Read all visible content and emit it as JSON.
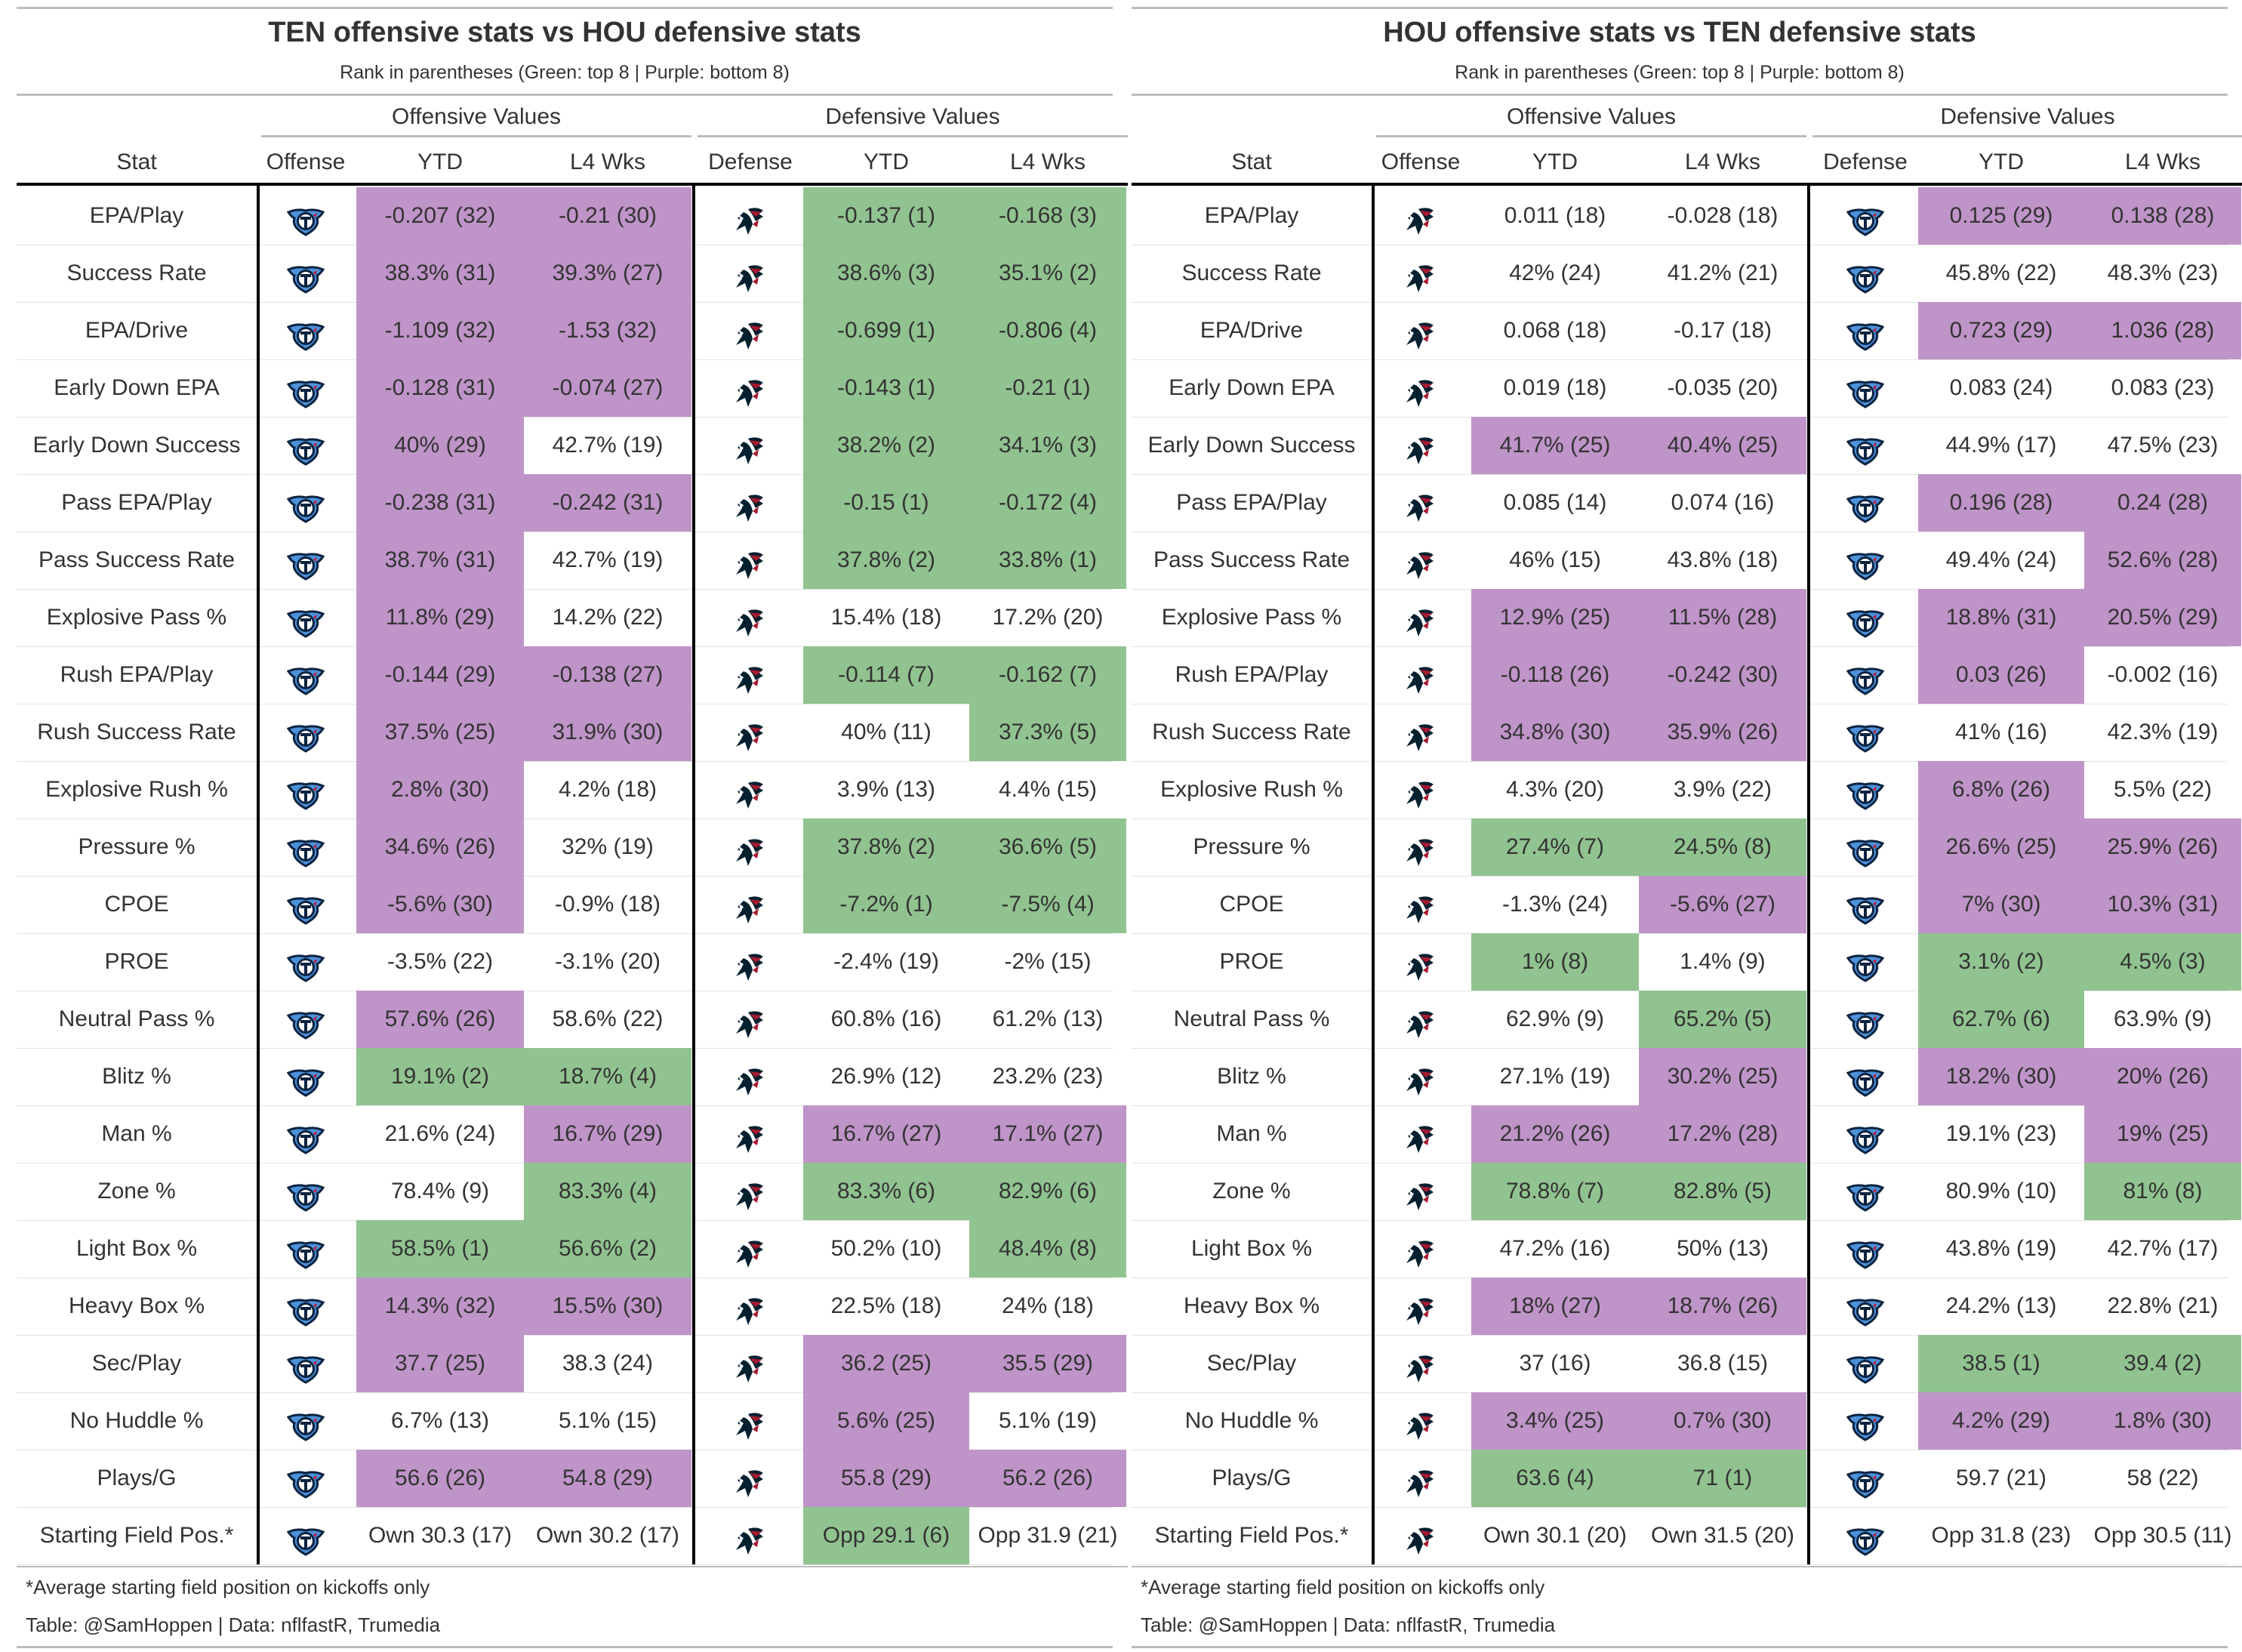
{
  "colors": {
    "green": "#91c390",
    "purple": "#bf94c8",
    "titans_navy": "#0c2340",
    "titans_blue": "#4b92db",
    "texans_red": "#a71930",
    "texans_navy": "#03202f"
  },
  "stats": [
    "EPA/Play",
    "Success Rate",
    "EPA/Drive",
    "Early Down EPA",
    "Early Down Success",
    "Pass EPA/Play",
    "Pass Success Rate",
    "Explosive Pass %",
    "Rush EPA/Play",
    "Rush Success Rate",
    "Explosive Rush %",
    "Pressure %",
    "CPOE",
    "PROE",
    "Neutral Pass %",
    "Blitz %",
    "Man %",
    "Zone %",
    "Light Box %",
    "Heavy Box %",
    "Sec/Play",
    "No Huddle %",
    "Plays/G",
    "Starting Field Pos.*"
  ],
  "tables": [
    {
      "title": "TEN offensive stats vs HOU defensive stats",
      "subtitle": "Rank in parentheses (Green: top 8 | Purple: bottom 8)",
      "spanners": {
        "offense": "Offensive Values",
        "defense": "Defensive Values"
      },
      "headers": {
        "stat": "Stat",
        "offense": "Offense",
        "off_ytd": "YTD",
        "off_l4": "L4 Wks",
        "defense": "Defense",
        "def_ytd": "YTD",
        "def_l4": "L4 Wks"
      },
      "offense_team": "TEN-logo",
      "defense_team": "HOU-logo",
      "rows": [
        {
          "off_ytd": "-0.207 (32)",
          "off_l4": "-0.21 (30)",
          "def_ytd": "-0.137 (1)",
          "def_l4": "-0.168 (3)",
          "c": [
            "p",
            "p",
            "g",
            "g"
          ]
        },
        {
          "off_ytd": "38.3% (31)",
          "off_l4": "39.3% (27)",
          "def_ytd": "38.6% (3)",
          "def_l4": "35.1% (2)",
          "c": [
            "p",
            "p",
            "g",
            "g"
          ]
        },
        {
          "off_ytd": "-1.109 (32)",
          "off_l4": "-1.53 (32)",
          "def_ytd": "-0.699 (1)",
          "def_l4": "-0.806 (4)",
          "c": [
            "p",
            "p",
            "g",
            "g"
          ]
        },
        {
          "off_ytd": "-0.128 (31)",
          "off_l4": "-0.074 (27)",
          "def_ytd": "-0.143 (1)",
          "def_l4": "-0.21 (1)",
          "c": [
            "p",
            "p",
            "g",
            "g"
          ]
        },
        {
          "off_ytd": "40% (29)",
          "off_l4": "42.7% (19)",
          "def_ytd": "38.2% (2)",
          "def_l4": "34.1% (3)",
          "c": [
            "p",
            "",
            "g",
            "g"
          ]
        },
        {
          "off_ytd": "-0.238 (31)",
          "off_l4": "-0.242 (31)",
          "def_ytd": "-0.15 (1)",
          "def_l4": "-0.172 (4)",
          "c": [
            "p",
            "p",
            "g",
            "g"
          ]
        },
        {
          "off_ytd": "38.7% (31)",
          "off_l4": "42.7% (19)",
          "def_ytd": "37.8% (2)",
          "def_l4": "33.8% (1)",
          "c": [
            "p",
            "",
            "g",
            "g"
          ]
        },
        {
          "off_ytd": "11.8% (29)",
          "off_l4": "14.2% (22)",
          "def_ytd": "15.4% (18)",
          "def_l4": "17.2% (20)",
          "c": [
            "p",
            "",
            "",
            ""
          ]
        },
        {
          "off_ytd": "-0.144 (29)",
          "off_l4": "-0.138 (27)",
          "def_ytd": "-0.114 (7)",
          "def_l4": "-0.162 (7)",
          "c": [
            "p",
            "p",
            "g",
            "g"
          ]
        },
        {
          "off_ytd": "37.5% (25)",
          "off_l4": "31.9% (30)",
          "def_ytd": "40% (11)",
          "def_l4": "37.3% (5)",
          "c": [
            "p",
            "p",
            "",
            "g"
          ]
        },
        {
          "off_ytd": "2.8% (30)",
          "off_l4": "4.2% (18)",
          "def_ytd": "3.9% (13)",
          "def_l4": "4.4% (15)",
          "c": [
            "p",
            "",
            "",
            ""
          ]
        },
        {
          "off_ytd": "34.6% (26)",
          "off_l4": "32% (19)",
          "def_ytd": "37.8% (2)",
          "def_l4": "36.6% (5)",
          "c": [
            "p",
            "",
            "g",
            "g"
          ]
        },
        {
          "off_ytd": "-5.6% (30)",
          "off_l4": "-0.9% (18)",
          "def_ytd": "-7.2% (1)",
          "def_l4": "-7.5% (4)",
          "c": [
            "p",
            "",
            "g",
            "g"
          ]
        },
        {
          "off_ytd": "-3.5% (22)",
          "off_l4": "-3.1% (20)",
          "def_ytd": "-2.4% (19)",
          "def_l4": "-2% (15)",
          "c": [
            "",
            "",
            "",
            ""
          ]
        },
        {
          "off_ytd": "57.6% (26)",
          "off_l4": "58.6% (22)",
          "def_ytd": "60.8% (16)",
          "def_l4": "61.2% (13)",
          "c": [
            "p",
            "",
            "",
            ""
          ]
        },
        {
          "off_ytd": "19.1% (2)",
          "off_l4": "18.7% (4)",
          "def_ytd": "26.9% (12)",
          "def_l4": "23.2% (23)",
          "c": [
            "g",
            "g",
            "",
            ""
          ]
        },
        {
          "off_ytd": "21.6% (24)",
          "off_l4": "16.7% (29)",
          "def_ytd": "16.7% (27)",
          "def_l4": "17.1% (27)",
          "c": [
            "",
            "p",
            "p",
            "p"
          ]
        },
        {
          "off_ytd": "78.4% (9)",
          "off_l4": "83.3% (4)",
          "def_ytd": "83.3% (6)",
          "def_l4": "82.9% (6)",
          "c": [
            "",
            "g",
            "g",
            "g"
          ]
        },
        {
          "off_ytd": "58.5% (1)",
          "off_l4": "56.6% (2)",
          "def_ytd": "50.2% (10)",
          "def_l4": "48.4% (8)",
          "c": [
            "g",
            "g",
            "",
            "g"
          ]
        },
        {
          "off_ytd": "14.3% (32)",
          "off_l4": "15.5% (30)",
          "def_ytd": "22.5% (18)",
          "def_l4": "24% (18)",
          "c": [
            "p",
            "p",
            "",
            ""
          ]
        },
        {
          "off_ytd": "37.7 (25)",
          "off_l4": "38.3 (24)",
          "def_ytd": "36.2 (25)",
          "def_l4": "35.5 (29)",
          "c": [
            "p",
            "",
            "p",
            "p"
          ]
        },
        {
          "off_ytd": "6.7% (13)",
          "off_l4": "5.1% (15)",
          "def_ytd": "5.6% (25)",
          "def_l4": "5.1% (19)",
          "c": [
            "",
            "",
            "p",
            ""
          ]
        },
        {
          "off_ytd": "56.6 (26)",
          "off_l4": "54.8 (29)",
          "def_ytd": "55.8 (29)",
          "def_l4": "56.2 (26)",
          "c": [
            "p",
            "p",
            "p",
            "p"
          ]
        },
        {
          "off_ytd": "Own 30.3 (17)",
          "off_l4": "Own 30.2 (17)",
          "def_ytd": "Opp 29.1 (6)",
          "def_l4": "Opp 31.9 (21)",
          "c": [
            "",
            "",
            "g",
            ""
          ]
        }
      ],
      "footnote": "*Average starting field position on kickoffs only",
      "source": "Table: @SamHoppen | Data: nflfastR, Trumedia"
    },
    {
      "title": "HOU offensive stats vs TEN defensive stats",
      "subtitle": "Rank in parentheses (Green: top 8 | Purple: bottom 8)",
      "spanners": {
        "offense": "Offensive Values",
        "defense": "Defensive Values"
      },
      "headers": {
        "stat": "Stat",
        "offense": "Offense",
        "off_ytd": "YTD",
        "off_l4": "L4 Wks",
        "defense": "Defense",
        "def_ytd": "YTD",
        "def_l4": "L4 Wks"
      },
      "offense_team": "HOU-logo",
      "defense_team": "TEN-logo",
      "rows": [
        {
          "off_ytd": "0.011 (18)",
          "off_l4": "-0.028 (18)",
          "def_ytd": "0.125 (29)",
          "def_l4": "0.138 (28)",
          "c": [
            "",
            "",
            "p",
            "p"
          ]
        },
        {
          "off_ytd": "42% (24)",
          "off_l4": "41.2% (21)",
          "def_ytd": "45.8% (22)",
          "def_l4": "48.3% (23)",
          "c": [
            "",
            "",
            "",
            ""
          ]
        },
        {
          "off_ytd": "0.068 (18)",
          "off_l4": "-0.17 (18)",
          "def_ytd": "0.723 (29)",
          "def_l4": "1.036 (28)",
          "c": [
            "",
            "",
            "p",
            "p"
          ]
        },
        {
          "off_ytd": "0.019 (18)",
          "off_l4": "-0.035 (20)",
          "def_ytd": "0.083 (24)",
          "def_l4": "0.083 (23)",
          "c": [
            "",
            "",
            "",
            ""
          ]
        },
        {
          "off_ytd": "41.7% (25)",
          "off_l4": "40.4% (25)",
          "def_ytd": "44.9% (17)",
          "def_l4": "47.5% (23)",
          "c": [
            "p",
            "p",
            "",
            ""
          ]
        },
        {
          "off_ytd": "0.085 (14)",
          "off_l4": "0.074 (16)",
          "def_ytd": "0.196 (28)",
          "def_l4": "0.24 (28)",
          "c": [
            "",
            "",
            "p",
            "p"
          ]
        },
        {
          "off_ytd": "46% (15)",
          "off_l4": "43.8% (18)",
          "def_ytd": "49.4% (24)",
          "def_l4": "52.6% (28)",
          "c": [
            "",
            "",
            "",
            "p"
          ]
        },
        {
          "off_ytd": "12.9% (25)",
          "off_l4": "11.5% (28)",
          "def_ytd": "18.8% (31)",
          "def_l4": "20.5% (29)",
          "c": [
            "p",
            "p",
            "p",
            "p"
          ]
        },
        {
          "off_ytd": "-0.118 (26)",
          "off_l4": "-0.242 (30)",
          "def_ytd": "0.03 (26)",
          "def_l4": "-0.002 (16)",
          "c": [
            "p",
            "p",
            "p",
            ""
          ]
        },
        {
          "off_ytd": "34.8% (30)",
          "off_l4": "35.9% (26)",
          "def_ytd": "41% (16)",
          "def_l4": "42.3% (19)",
          "c": [
            "p",
            "p",
            "",
            ""
          ]
        },
        {
          "off_ytd": "4.3% (20)",
          "off_l4": "3.9% (22)",
          "def_ytd": "6.8% (26)",
          "def_l4": "5.5% (22)",
          "c": [
            "",
            "",
            "p",
            ""
          ]
        },
        {
          "off_ytd": "27.4% (7)",
          "off_l4": "24.5% (8)",
          "def_ytd": "26.6% (25)",
          "def_l4": "25.9% (26)",
          "c": [
            "g",
            "g",
            "p",
            "p"
          ]
        },
        {
          "off_ytd": "-1.3% (24)",
          "off_l4": "-5.6% (27)",
          "def_ytd": "7% (30)",
          "def_l4": "10.3% (31)",
          "c": [
            "",
            "p",
            "p",
            "p"
          ]
        },
        {
          "off_ytd": "1% (8)",
          "off_l4": "1.4% (9)",
          "def_ytd": "3.1% (2)",
          "def_l4": "4.5% (3)",
          "c": [
            "g",
            "",
            "g",
            "g"
          ]
        },
        {
          "off_ytd": "62.9% (9)",
          "off_l4": "65.2% (5)",
          "def_ytd": "62.7% (6)",
          "def_l4": "63.9% (9)",
          "c": [
            "",
            "g",
            "g",
            ""
          ]
        },
        {
          "off_ytd": "27.1% (19)",
          "off_l4": "30.2% (25)",
          "def_ytd": "18.2% (30)",
          "def_l4": "20% (26)",
          "c": [
            "",
            "p",
            "p",
            "p"
          ]
        },
        {
          "off_ytd": "21.2% (26)",
          "off_l4": "17.2% (28)",
          "def_ytd": "19.1% (23)",
          "def_l4": "19% (25)",
          "c": [
            "p",
            "p",
            "",
            "p"
          ]
        },
        {
          "off_ytd": "78.8% (7)",
          "off_l4": "82.8% (5)",
          "def_ytd": "80.9% (10)",
          "def_l4": "81% (8)",
          "c": [
            "g",
            "g",
            "",
            "g"
          ]
        },
        {
          "off_ytd": "47.2% (16)",
          "off_l4": "50% (13)",
          "def_ytd": "43.8% (19)",
          "def_l4": "42.7% (17)",
          "c": [
            "",
            "",
            "",
            ""
          ]
        },
        {
          "off_ytd": "18% (27)",
          "off_l4": "18.7% (26)",
          "def_ytd": "24.2% (13)",
          "def_l4": "22.8% (21)",
          "c": [
            "p",
            "p",
            "",
            ""
          ]
        },
        {
          "off_ytd": "37 (16)",
          "off_l4": "36.8 (15)",
          "def_ytd": "38.5 (1)",
          "def_l4": "39.4 (2)",
          "c": [
            "",
            "",
            "g",
            "g"
          ]
        },
        {
          "off_ytd": "3.4% (25)",
          "off_l4": "0.7% (30)",
          "def_ytd": "4.2% (29)",
          "def_l4": "1.8% (30)",
          "c": [
            "p",
            "p",
            "p",
            "p"
          ]
        },
        {
          "off_ytd": "63.6 (4)",
          "off_l4": "71 (1)",
          "def_ytd": "59.7 (21)",
          "def_l4": "58 (22)",
          "c": [
            "g",
            "g",
            "",
            ""
          ]
        },
        {
          "off_ytd": "Own 30.1 (20)",
          "off_l4": "Own 31.5 (20)",
          "def_ytd": "Opp 31.8 (23)",
          "def_l4": "Opp 30.5 (11)",
          "c": [
            "",
            "",
            "",
            ""
          ]
        }
      ],
      "footnote": "*Average starting field position on kickoffs only",
      "source": "Table: @SamHoppen | Data: nflfastR, Trumedia"
    }
  ]
}
